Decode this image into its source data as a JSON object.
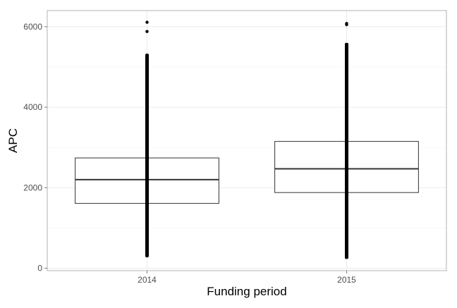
{
  "chart_data": {
    "type": "box",
    "title": "",
    "xlabel": "Funding period",
    "ylabel": "APC",
    "categories": [
      "2014",
      "2015"
    ],
    "ylim": [
      -60,
      6400
    ],
    "yticks": [
      0,
      2000,
      4000,
      6000
    ],
    "grid": true,
    "legend": "none",
    "boxes": [
      {
        "category": "2014",
        "q1": 1610,
        "median": 2200,
        "q3": 2740,
        "whisker_low": 270,
        "whisker_high": 4100,
        "outlier_band": [
          4100,
          5330
        ],
        "outliers": [
          5880,
          6110
        ]
      },
      {
        "category": "2015",
        "q1": 1880,
        "median": 2470,
        "q3": 3150,
        "whisker_low": 230,
        "whisker_high": 5050,
        "outlier_band": [
          5050,
          5600
        ],
        "outliers": [
          6050,
          6080
        ]
      }
    ],
    "colors": {
      "background": "#ffffff",
      "panel_border": "#b3b3b3",
      "grid_major": "#ebebeb",
      "grid_minor": "#f5f5f5",
      "box_outline": "#333333",
      "points": "#000000"
    }
  }
}
